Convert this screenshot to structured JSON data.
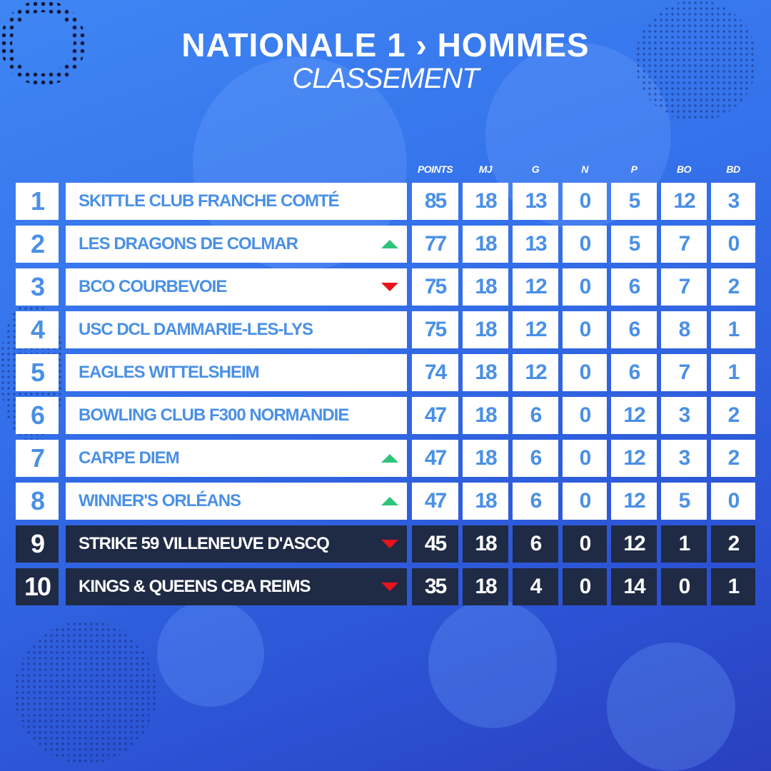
{
  "header": {
    "title": "NATIONALE 1 › HOMMES",
    "subtitle": "CLASSEMENT"
  },
  "columns": [
    "POINTS",
    "MJ",
    "G",
    "N",
    "P",
    "BO",
    "BD"
  ],
  "colors": {
    "cell_text": "#4a90e6",
    "relegation_row": "#1f2a44",
    "up": "#2ec47a",
    "down": "#e8121c"
  },
  "rows": [
    {
      "rank": "1",
      "team": "SKITTLE CLUB FRANCHE COMTÉ",
      "trend": "none",
      "stats": [
        "85",
        "18",
        "13",
        "0",
        "5",
        "12",
        "3"
      ],
      "zone": "normal"
    },
    {
      "rank": "2",
      "team": "LES DRAGONS DE COLMAR",
      "trend": "up",
      "stats": [
        "77",
        "18",
        "13",
        "0",
        "5",
        "7",
        "0"
      ],
      "zone": "normal"
    },
    {
      "rank": "3",
      "team": "BCO COURBEVOIE",
      "trend": "down",
      "stats": [
        "75",
        "18",
        "12",
        "0",
        "6",
        "7",
        "2"
      ],
      "zone": "normal"
    },
    {
      "rank": "4",
      "team": "USC DCL DAMMARIE-LES-LYS",
      "trend": "none",
      "stats": [
        "75",
        "18",
        "12",
        "0",
        "6",
        "8",
        "1"
      ],
      "zone": "normal"
    },
    {
      "rank": "5",
      "team": "EAGLES WITTELSHEIM",
      "trend": "none",
      "stats": [
        "74",
        "18",
        "12",
        "0",
        "6",
        "7",
        "1"
      ],
      "zone": "normal"
    },
    {
      "rank": "6",
      "team": "BOWLING CLUB F300 NORMANDIE",
      "trend": "none",
      "stats": [
        "47",
        "18",
        "6",
        "0",
        "12",
        "3",
        "2"
      ],
      "zone": "normal"
    },
    {
      "rank": "7",
      "team": "CARPE DIEM",
      "trend": "up",
      "stats": [
        "47",
        "18",
        "6",
        "0",
        "12",
        "3",
        "2"
      ],
      "zone": "normal"
    },
    {
      "rank": "8",
      "team": "WINNER'S ORLÉANS",
      "trend": "up",
      "stats": [
        "47",
        "18",
        "6",
        "0",
        "12",
        "5",
        "0"
      ],
      "zone": "normal"
    },
    {
      "rank": "9",
      "team": "STRIKE 59 VILLENEUVE D'ASCQ",
      "trend": "down",
      "stats": [
        "45",
        "18",
        "6",
        "0",
        "12",
        "1",
        "2"
      ],
      "zone": "relegation"
    },
    {
      "rank": "10",
      "team": "KINGS & QUEENS CBA REIMS",
      "trend": "down",
      "stats": [
        "35",
        "18",
        "4",
        "0",
        "14",
        "0",
        "1"
      ],
      "zone": "relegation"
    }
  ]
}
